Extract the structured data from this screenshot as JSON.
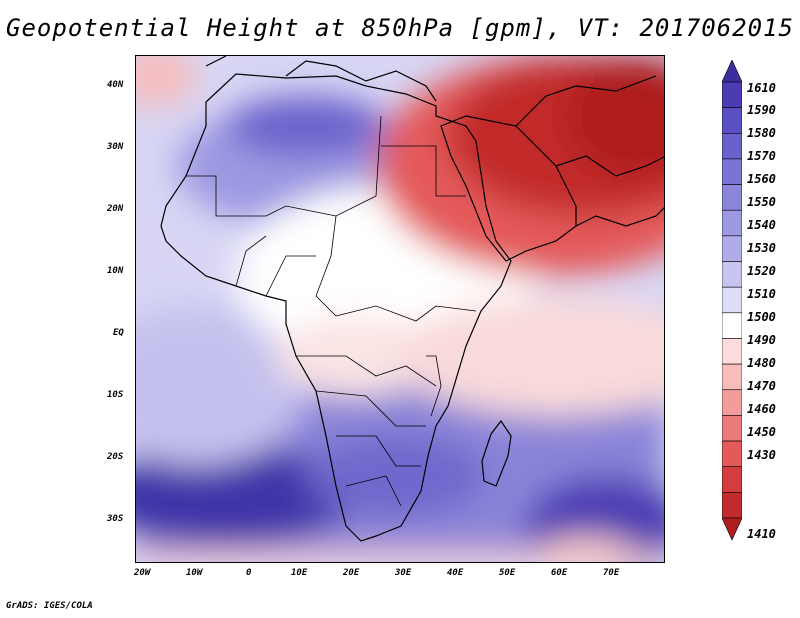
{
  "title": "Geopotential Height at 850hPa [gpm], VT: 2017062015",
  "credit": "GrADS: IGES/COLA",
  "map": {
    "lon_range": [
      -25,
      80
    ],
    "lat_range": [
      -37,
      45
    ],
    "lat_labels": [
      "40N",
      "30N",
      "20N",
      "10N",
      "EQ",
      "10S",
      "20S",
      "30S"
    ],
    "lon_labels": [
      "20W",
      "10W",
      "0",
      "10E",
      "20E",
      "30E",
      "40E",
      "50E",
      "60E",
      "70E"
    ]
  },
  "colorbar": {
    "levels": [
      "1610",
      "1590",
      "1580",
      "1570",
      "1560",
      "1550",
      "1540",
      "1530",
      "1520",
      "1510",
      "1500",
      "1490",
      "1480",
      "1470",
      "1460",
      "1450",
      "1430",
      "1410"
    ],
    "colors": [
      "#3b2fa0",
      "#4b3cb4",
      "#5a50c4",
      "#6a62cc",
      "#7b74d4",
      "#8c86da",
      "#9d99e2",
      "#b0ace8",
      "#c7c5f0",
      "#dddcf8",
      "#ffffff",
      "#fcdcdc",
      "#f7bcbc",
      "#f29c9c",
      "#eb7a7a",
      "#e45a5a",
      "#d43d3d",
      "#c22b2b",
      "#ae1e1e"
    ]
  }
}
